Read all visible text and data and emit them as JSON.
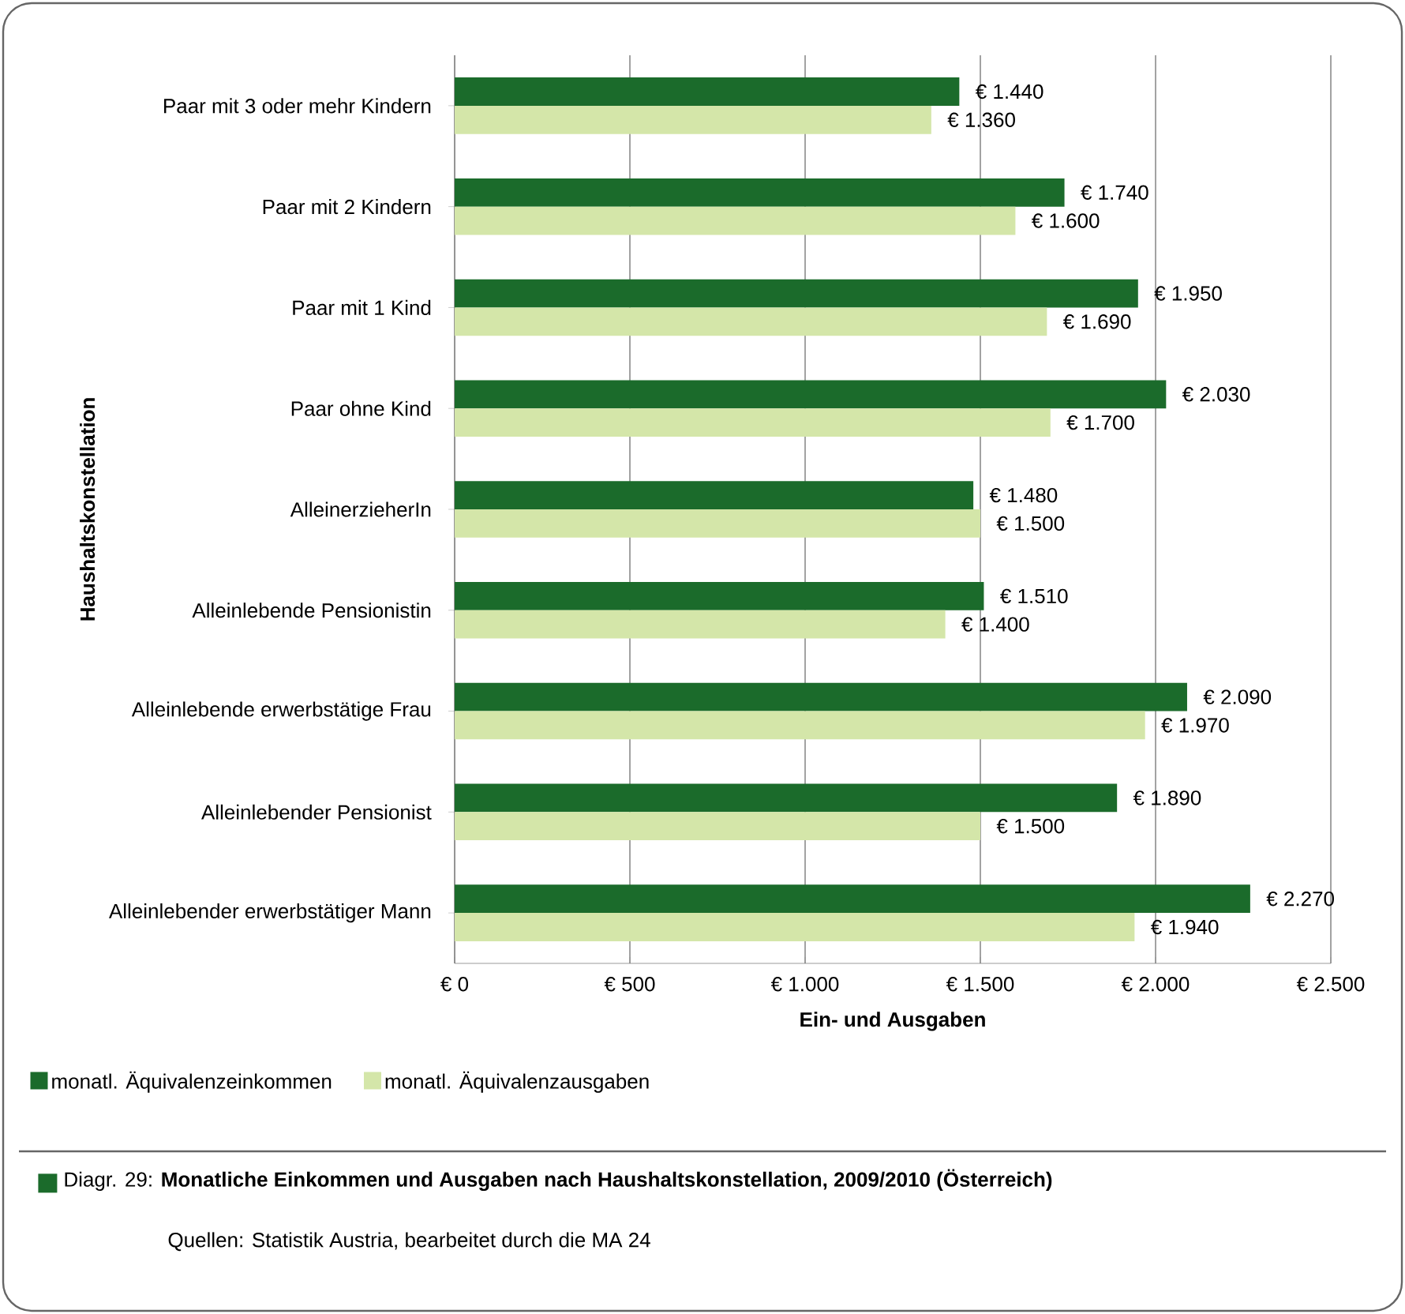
{
  "chart_data": {
    "type": "bar",
    "orientation": "horizontal",
    "xlabel": "Ein- und Ausgaben",
    "ylabel": "Haushaltskonstellation",
    "categories": [
      "Paar mit 3 oder mehr Kindern",
      "Paar mit 2 Kindern",
      "Paar mit 1 Kind",
      "Paar ohne Kind",
      "AlleinerzieherIn",
      "Alleinlebende Pensionistin",
      "Alleinlebende erwerbstätige Frau",
      "Alleinlebender Pensionist",
      "Alleinlebender erwerbstätiger Mann"
    ],
    "series": [
      {
        "name": "monatl. Äquivalenzeinkommen",
        "color": "#1b6b2b",
        "values": [
          1440,
          1740,
          1950,
          2030,
          1480,
          1510,
          2090,
          1890,
          2270
        ],
        "value_labels": [
          "€ 1.440",
          "€ 1.740",
          "€ 1.950",
          "€ 2.030",
          "€ 1.480",
          "€ 1.510",
          "€ 2.090",
          "€ 1.890",
          "€ 2.270"
        ]
      },
      {
        "name": "monatl. Äquivalenzausgaben",
        "color": "#d4e6a9",
        "values": [
          1360,
          1600,
          1690,
          1700,
          1500,
          1400,
          1970,
          1500,
          1940
        ],
        "value_labels": [
          "€ 1.360",
          "€ 1.600",
          "€ 1.690",
          "€ 1.700",
          "€ 1.500",
          "€ 1.400",
          "€ 1.970",
          "€ 1.500",
          "€ 1.940"
        ]
      }
    ],
    "xlim": [
      0,
      2500
    ],
    "xticks": [
      {
        "value": 0,
        "label": "€ 0"
      },
      {
        "value": 500,
        "label": "€ 500"
      },
      {
        "value": 1000,
        "label": "€ 1.000"
      },
      {
        "value": 1500,
        "label": "€ 1.500"
      },
      {
        "value": 2000,
        "label": "€ 2.000"
      },
      {
        "value": 2500,
        "label": "€ 2.500"
      }
    ],
    "grid": "x",
    "legend": "bottom left",
    "annotations": [
      "Diagr. 29: **Monatliche Einkommen und Ausgaben nach Haushaltskonstellation, 2009/2010 (Österreich)**",
      "Quellen: Statistik Austria, bearbeitet durch die MA 24"
    ]
  }
}
